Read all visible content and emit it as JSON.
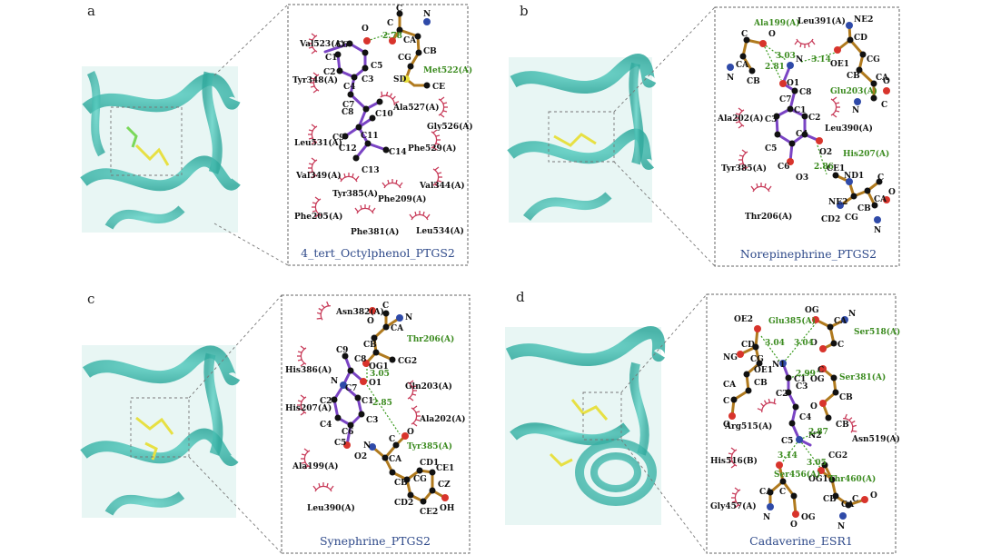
{
  "panels": [
    {
      "letter": "a",
      "caption": "4_tert_Octylphenol_PTGS2",
      "atoms": [
        "O",
        "C6",
        "2.78",
        "C",
        "C",
        "N",
        "CA",
        "CB",
        "CG",
        "SD",
        "CE",
        "C5",
        "C4",
        "C3",
        "C2",
        "C1",
        "C7",
        "C8",
        "C9",
        "C10",
        "C11",
        "C12",
        "C13",
        "C14"
      ],
      "hbond_residues": [
        "Met522(A)"
      ],
      "distances": [
        "2.78"
      ],
      "contact_residues": [
        "Val523(A)",
        "Tyr348(A)",
        "Ala527(A)",
        "Gly526(A)",
        "Leu531(A)",
        "Phe529(A)",
        "Val349(A)",
        "Val344(A)",
        "Tyr385(A)",
        "Phe209(A)",
        "Phe205(A)",
        "Phe381(A)",
        "Leu534(A)"
      ]
    },
    {
      "letter": "b",
      "caption": "Norepinephrine_PTGS2",
      "atoms": [
        "C",
        "O",
        "N",
        "CA",
        "CB",
        "N",
        "O1",
        "C8",
        "C7",
        "C1",
        "C2",
        "C3",
        "C4",
        "C5",
        "C6",
        "O2",
        "O3",
        "CD",
        "OE1",
        "NE2",
        "CG",
        "CB",
        "CA",
        "C",
        "O",
        "N",
        "CE1",
        "ND1",
        "NE2",
        "CD2",
        "CG",
        "CB",
        "CA",
        "C",
        "O",
        "N"
      ],
      "hbond_residues": [
        "Ala199(A)",
        "Glu203(A)",
        "His207(A)"
      ],
      "distances": [
        "3.03",
        "2.81",
        "3.14",
        "2.86"
      ],
      "contact_residues": [
        "Leu391(A)",
        "Ala202(A)",
        "Leu390(A)",
        "Tyr385(A)",
        "Thr206(A)"
      ]
    },
    {
      "letter": "c",
      "caption": "Synephrine_PTGS2",
      "atoms": [
        "C",
        "O",
        "N",
        "CA",
        "CB",
        "CG2",
        "OG1",
        "C9",
        "C8",
        "N",
        "C7",
        "O1",
        "C2",
        "C1",
        "C4",
        "C3",
        "C6",
        "C5",
        "O2",
        "N",
        "CA",
        "C",
        "O",
        "CB",
        "CG",
        "CD1",
        "CE1",
        "CZ",
        "CD2",
        "CE2",
        "OH"
      ],
      "hbond_residues": [
        "Thr206(A)",
        "Tyr385(A)"
      ],
      "distances": [
        "3.05",
        "2.85"
      ],
      "contact_residues": [
        "Asn382(A)",
        "His386(A)",
        "Gln203(A)",
        "His207(A)",
        "Ala202(A)",
        "Ala199(A)",
        "Leu390(A)"
      ]
    },
    {
      "letter": "d",
      "caption": "Cadaverine_ESR1",
      "atoms": [
        "OE2",
        "CD",
        "NG",
        "CG",
        "OE1",
        "CB",
        "CA",
        "C",
        "O",
        "N1",
        "C1",
        "C2",
        "C3",
        "C4",
        "C5",
        "N2",
        "OG",
        "CA",
        "N",
        "C",
        "O",
        "OG",
        "CB",
        "O",
        "C",
        "CB",
        "CG2",
        "OG1",
        "CA",
        "C",
        "O",
        "N",
        "CB",
        "CA",
        "C",
        "O",
        "N",
        "OG"
      ],
      "hbond_residues": [
        "Glu385(A)",
        "Ser518(A)",
        "Ser381(A)",
        "Ser456(A)",
        "Thr460(A)"
      ],
      "distances": [
        "3.04",
        "3.04",
        "2.99",
        "2.87",
        "3.14",
        "3.05"
      ],
      "contact_residues": [
        "Arg515(A)",
        "Asn519(A)",
        "His516(B)",
        "Gly457(A)"
      ]
    }
  ]
}
